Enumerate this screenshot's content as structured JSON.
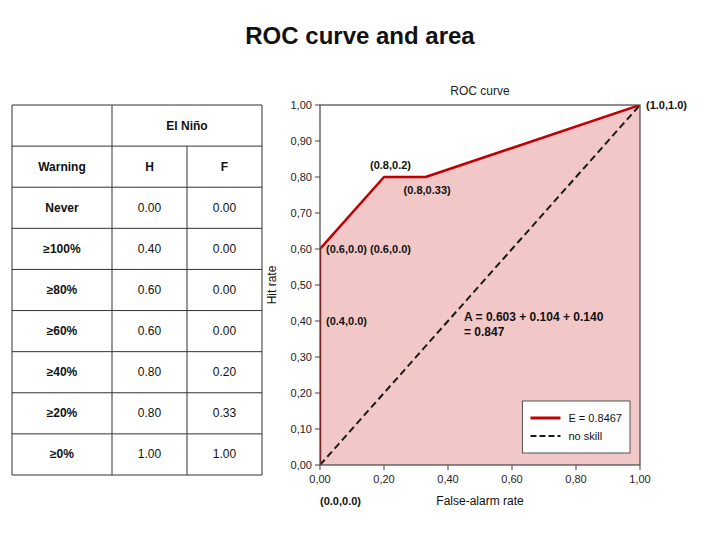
{
  "chart_data": [
    {
      "type": "table",
      "column_group": "El Niño",
      "columns": [
        "Warning",
        "H",
        "F"
      ],
      "rows": [
        [
          "Never",
          "0.00",
          "0.00"
        ],
        [
          "≥100%",
          "0.40",
          "0.00"
        ],
        [
          "≥80%",
          "0.60",
          "0.00"
        ],
        [
          "≥60%",
          "0.60",
          "0.00"
        ],
        [
          "≥40%",
          "0.80",
          "0.20"
        ],
        [
          "≥20%",
          "0.80",
          "0.33"
        ],
        [
          "≥0%",
          "1.00",
          "1.00"
        ]
      ]
    },
    {
      "type": "line",
      "title": "ROC curve and area",
      "subtitle": "ROC curve",
      "x_label": "False-alarm rate",
      "y_label": "Hit rate",
      "series": [
        {
          "name": "E = 0.8467",
          "color": "#C00000",
          "type": "area",
          "x": [
            0.0,
            0.0,
            0.0,
            0.2,
            0.33,
            1.0
          ],
          "values": [
            0.0,
            0.4,
            0.6,
            0.8,
            0.8,
            1.0
          ]
        },
        {
          "name": "no skill",
          "color": "#1A1A1A",
          "line_style": "dashed",
          "x": [
            0.0,
            1.0
          ],
          "values": [
            0.0,
            1.0
          ]
        }
      ],
      "xlim": [
        0,
        1
      ],
      "ylim": [
        0,
        1
      ],
      "xticks": [
        {
          "value": 0.0,
          "label": "0,00"
        },
        {
          "value": 0.2,
          "label": "0,20"
        },
        {
          "value": 0.4,
          "label": "0,40"
        },
        {
          "value": 0.6,
          "label": "0,60"
        },
        {
          "value": 0.8,
          "label": "0,80"
        },
        {
          "value": 1.0,
          "label": "1,00"
        }
      ],
      "yticks": [
        {
          "value": 0.0,
          "label": "0,00"
        },
        {
          "value": 0.1,
          "label": "0,10"
        },
        {
          "value": 0.2,
          "label": "0,20"
        },
        {
          "value": 0.3,
          "label": "0,30"
        },
        {
          "value": 0.4,
          "label": "0,40"
        },
        {
          "value": 0.5,
          "label": "0,50"
        },
        {
          "value": 0.6,
          "label": "0,60"
        },
        {
          "value": 0.7,
          "label": "0,70"
        },
        {
          "value": 0.8,
          "label": "0,80"
        },
        {
          "value": 0.9,
          "label": "0,90"
        },
        {
          "value": 1.0,
          "label": "1,00"
        }
      ],
      "grid": false,
      "legend": "lower right",
      "annotations": [
        {
          "text": "(1.0,1.0)",
          "x": 1.0,
          "y": 1.0
        },
        {
          "text": "(0.0,0.0)",
          "x": 0.0,
          "y": 0.0
        },
        {
          "text": "(0.4,0.0)",
          "x": 0.0,
          "y": 0.4
        },
        {
          "text": "(0.6,0.0) (0.6,0.0)",
          "x": 0.0,
          "y": 0.6
        },
        {
          "text": "(0.8,0.2)",
          "x": 0.2,
          "y": 0.8
        },
        {
          "text": "(0.8,0.33)",
          "x": 0.33,
          "y": 0.8
        },
        {
          "text": "A = 0.603 + 0.104 + 0.140\n= 0.847"
        }
      ]
    }
  ]
}
